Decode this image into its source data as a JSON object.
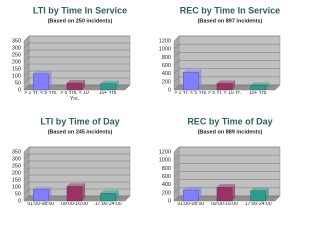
{
  "chart_data": [
    {
      "type": "bar",
      "title": "LTI by Time In Service",
      "subtitle": "(Based on 250 incidents)",
      "categories": [
        "> 1 Yr. < 5 Yrs.",
        "> 5 Yrs. < 10 Yrs.",
        "10+ Yrs."
      ],
      "values": [
        115,
        50,
        45
      ],
      "colors": [
        "#8080ff",
        "#993366",
        "#2a9d8f"
      ],
      "ylim": [
        0,
        350
      ],
      "yticks": [
        0,
        50,
        100,
        150,
        200,
        250,
        300,
        350
      ],
      "grid": true
    },
    {
      "type": "bar",
      "title": "REC by Time In Service",
      "subtitle": "(Based on 897 incidents)",
      "categories": [
        "> 1 Yr. < 5 Yrs.",
        "> 5 Yr. < 10 Yr.",
        "10+ Yrs."
      ],
      "values": [
        430,
        160,
        110
      ],
      "colors": [
        "#8080ff",
        "#993366",
        "#2a9d8f"
      ],
      "ylim": [
        0,
        1200
      ],
      "yticks": [
        0,
        200,
        400,
        600,
        800,
        1000,
        1200
      ],
      "grid": true
    },
    {
      "type": "bar",
      "title": "LTI by Time of Day",
      "subtitle": "(Based on 245 incidents)",
      "categories": [
        "01:00-08:00",
        "09:00-16:00",
        "17:00-24:00"
      ],
      "values": [
        80,
        105,
        55
      ],
      "colors": [
        "#8080ff",
        "#993366",
        "#2a9d8f"
      ],
      "ylim": [
        0,
        350
      ],
      "yticks": [
        0,
        50,
        100,
        150,
        200,
        250,
        300,
        350
      ],
      "grid": true
    },
    {
      "type": "bar",
      "title": "REC by Time of Day",
      "subtitle": "(Based on 889 incidents)",
      "categories": [
        "01:00-08:00",
        "09:00-16:00",
        "17:00-24:00"
      ],
      "values": [
        270,
        340,
        250
      ],
      "colors": [
        "#8080ff",
        "#993366",
        "#2a9d8f"
      ],
      "ylim": [
        0,
        1200
      ],
      "yticks": [
        0,
        200,
        400,
        600,
        800,
        1000,
        1200
      ],
      "grid": true
    }
  ]
}
